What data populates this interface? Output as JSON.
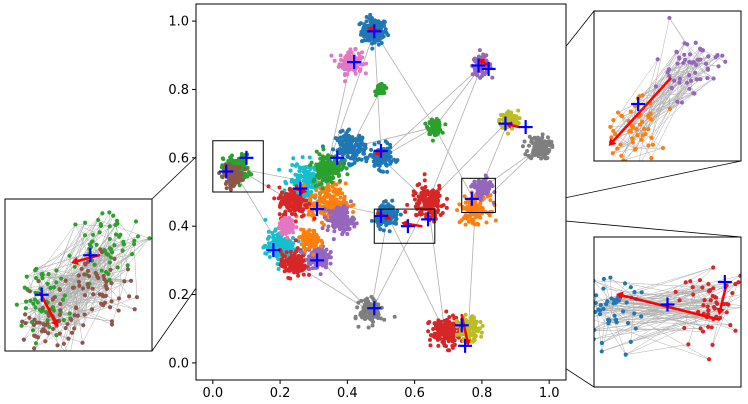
{
  "chart_data": {
    "type": "scatter",
    "title": "",
    "xlabel": "",
    "ylabel": "",
    "xlim": [
      -0.05,
      1.05
    ],
    "ylim": [
      -0.05,
      1.05
    ],
    "x_ticks": [
      "0.0",
      "0.2",
      "0.4",
      "0.6",
      "0.8",
      "1.0"
    ],
    "y_ticks": [
      "0.0",
      "0.2",
      "0.4",
      "0.6",
      "0.8",
      "1.0"
    ],
    "grid": false,
    "legend": "none",
    "series_colors": [
      "#1f77b4",
      "#ff7f0e",
      "#2ca02c",
      "#d62728",
      "#9467bd",
      "#8c564b",
      "#e377c2",
      "#7f7f7f",
      "#bcbd22",
      "#17becf"
    ],
    "marker_color": "#0000ff",
    "arrow_color": "#ff0000",
    "edge_color": "#b0b0b0",
    "clusters": [
      {
        "x": 0.48,
        "y": 0.97,
        "r": 0.035,
        "color": "#1f77b4"
      },
      {
        "x": 0.41,
        "y": 0.88,
        "r": 0.03,
        "color": "#e377c2"
      },
      {
        "x": 0.8,
        "y": 0.87,
        "r": 0.025,
        "color": "#9467bd"
      },
      {
        "x": 0.5,
        "y": 0.8,
        "r": 0.012,
        "color": "#2ca02c"
      },
      {
        "x": 0.66,
        "y": 0.69,
        "r": 0.018,
        "color": "#2ca02c"
      },
      {
        "x": 0.88,
        "y": 0.71,
        "r": 0.025,
        "color": "#bcbd22"
      },
      {
        "x": 0.97,
        "y": 0.63,
        "r": 0.03,
        "color": "#7f7f7f"
      },
      {
        "x": 0.07,
        "y": 0.57,
        "r": 0.035,
        "color": "#2ca02c"
      },
      {
        "x": 0.06,
        "y": 0.55,
        "r": 0.025,
        "color": "#8c564b"
      },
      {
        "x": 0.41,
        "y": 0.63,
        "r": 0.04,
        "color": "#1f77b4"
      },
      {
        "x": 0.5,
        "y": 0.6,
        "r": 0.03,
        "color": "#1f77b4"
      },
      {
        "x": 0.28,
        "y": 0.53,
        "r": 0.05,
        "color": "#17becf"
      },
      {
        "x": 0.34,
        "y": 0.47,
        "r": 0.05,
        "color": "#ff7f0e"
      },
      {
        "x": 0.24,
        "y": 0.47,
        "r": 0.04,
        "color": "#d62728"
      },
      {
        "x": 0.34,
        "y": 0.57,
        "r": 0.04,
        "color": "#2ca02c"
      },
      {
        "x": 0.38,
        "y": 0.42,
        "r": 0.035,
        "color": "#9467bd"
      },
      {
        "x": 0.2,
        "y": 0.34,
        "r": 0.04,
        "color": "#17becf"
      },
      {
        "x": 0.24,
        "y": 0.29,
        "r": 0.035,
        "color": "#d62728"
      },
      {
        "x": 0.22,
        "y": 0.4,
        "r": 0.02,
        "color": "#e377c2"
      },
      {
        "x": 0.31,
        "y": 0.31,
        "r": 0.03,
        "color": "#9467bd"
      },
      {
        "x": 0.29,
        "y": 0.36,
        "r": 0.025,
        "color": "#ff7f0e"
      },
      {
        "x": 0.52,
        "y": 0.43,
        "r": 0.03,
        "color": "#1f77b4"
      },
      {
        "x": 0.64,
        "y": 0.47,
        "r": 0.045,
        "color": "#d62728"
      },
      {
        "x": 0.78,
        "y": 0.45,
        "r": 0.035,
        "color": "#ff7f0e"
      },
      {
        "x": 0.8,
        "y": 0.51,
        "r": 0.025,
        "color": "#9467bd"
      },
      {
        "x": 0.47,
        "y": 0.15,
        "r": 0.03,
        "color": "#7f7f7f"
      },
      {
        "x": 0.69,
        "y": 0.09,
        "r": 0.04,
        "color": "#d62728"
      },
      {
        "x": 0.76,
        "y": 0.1,
        "r": 0.03,
        "color": "#bcbd22"
      }
    ],
    "center_markers": [
      {
        "x": 0.48,
        "y": 0.97
      },
      {
        "x": 0.42,
        "y": 0.88
      },
      {
        "x": 0.79,
        "y": 0.87
      },
      {
        "x": 0.82,
        "y": 0.86
      },
      {
        "x": 0.87,
        "y": 0.7
      },
      {
        "x": 0.93,
        "y": 0.69
      },
      {
        "x": 0.5,
        "y": 0.62
      },
      {
        "x": 0.37,
        "y": 0.6
      },
      {
        "x": 0.04,
        "y": 0.56
      },
      {
        "x": 0.1,
        "y": 0.6
      },
      {
        "x": 0.26,
        "y": 0.51
      },
      {
        "x": 0.31,
        "y": 0.45
      },
      {
        "x": 0.5,
        "y": 0.43
      },
      {
        "x": 0.58,
        "y": 0.4
      },
      {
        "x": 0.64,
        "y": 0.42
      },
      {
        "x": 0.77,
        "y": 0.48
      },
      {
        "x": 0.18,
        "y": 0.33
      },
      {
        "x": 0.31,
        "y": 0.3
      },
      {
        "x": 0.48,
        "y": 0.16
      },
      {
        "x": 0.74,
        "y": 0.11
      },
      {
        "x": 0.75,
        "y": 0.05
      }
    ],
    "arrows": [
      {
        "from": [
          0.5,
          0.97
        ],
        "to": [
          0.46,
          0.98
        ]
      },
      {
        "from": [
          0.82,
          0.87
        ],
        "to": [
          0.79,
          0.89
        ]
      },
      {
        "from": [
          0.91,
          0.69
        ],
        "to": [
          0.87,
          0.7
        ]
      },
      {
        "from": [
          0.51,
          0.62
        ],
        "to": [
          0.48,
          0.61
        ]
      },
      {
        "from": [
          0.62,
          0.4
        ],
        "to": [
          0.56,
          0.41
        ]
      },
      {
        "from": [
          0.49,
          0.44
        ],
        "to": [
          0.53,
          0.42
        ]
      },
      {
        "from": [
          0.24,
          0.51
        ],
        "to": [
          0.28,
          0.5
        ]
      },
      {
        "from": [
          0.74,
          0.14
        ],
        "to": [
          0.76,
          0.05
        ]
      }
    ],
    "edges": [
      [
        0.48,
        0.97,
        0.5,
        0.62
      ],
      [
        0.48,
        0.97,
        0.66,
        0.69
      ],
      [
        0.41,
        0.88,
        0.34,
        0.57
      ],
      [
        0.8,
        0.87,
        0.66,
        0.69
      ],
      [
        0.8,
        0.87,
        0.64,
        0.47
      ],
      [
        0.88,
        0.71,
        0.78,
        0.47
      ],
      [
        0.97,
        0.63,
        0.8,
        0.51
      ],
      [
        0.66,
        0.69,
        0.5,
        0.6
      ],
      [
        0.66,
        0.69,
        0.78,
        0.47
      ],
      [
        0.5,
        0.8,
        0.41,
        0.63
      ],
      [
        0.5,
        0.6,
        0.64,
        0.47
      ],
      [
        0.07,
        0.57,
        0.24,
        0.47
      ],
      [
        0.07,
        0.57,
        0.28,
        0.53
      ],
      [
        0.52,
        0.43,
        0.47,
        0.15
      ],
      [
        0.64,
        0.47,
        0.69,
        0.09
      ],
      [
        0.78,
        0.45,
        0.76,
        0.1
      ],
      [
        0.52,
        0.43,
        0.69,
        0.09
      ],
      [
        0.34,
        0.47,
        0.52,
        0.43
      ],
      [
        0.31,
        0.31,
        0.47,
        0.15
      ],
      [
        0.64,
        0.47,
        0.88,
        0.71
      ],
      [
        0.41,
        0.63,
        0.66,
        0.69
      ],
      [
        0.2,
        0.34,
        0.07,
        0.55
      ],
      [
        0.78,
        0.45,
        0.97,
        0.63
      ],
      [
        0.5,
        0.6,
        0.8,
        0.87
      ],
      [
        0.34,
        0.57,
        0.48,
        0.97
      ],
      [
        0.64,
        0.47,
        0.47,
        0.15
      ],
      [
        0.24,
        0.29,
        0.47,
        0.15
      ]
    ],
    "insets": [
      {
        "name": "left-inset",
        "region": {
          "x0": 0.0,
          "y0": 0.5,
          "x1": 0.15,
          "y1": 0.65
        },
        "clusters": [
          {
            "x": 0.72,
            "y": 0.7,
            "color": "#2ca02c"
          },
          {
            "x": 0.28,
            "y": 0.35,
            "color": "#2ca02c"
          },
          {
            "x": 0.65,
            "y": 0.45,
            "color": "#8c564b"
          },
          {
            "x": 0.32,
            "y": 0.2,
            "color": "#8c564b"
          }
        ],
        "markers": [
          {
            "x": 0.58,
            "y": 0.63
          },
          {
            "x": 0.25,
            "y": 0.37
          }
        ],
        "arrows": [
          {
            "from": [
              0.64,
              0.63
            ],
            "to": [
              0.45,
              0.58
            ]
          },
          {
            "from": [
              0.24,
              0.38
            ],
            "to": [
              0.36,
              0.16
            ]
          }
        ]
      },
      {
        "name": "top-right-inset",
        "region": {
          "x0": 0.74,
          "y0": 0.44,
          "x1": 0.84,
          "y1": 0.54
        },
        "clusters": [
          {
            "x": 0.65,
            "y": 0.62,
            "color": "#9467bd"
          },
          {
            "x": 0.25,
            "y": 0.2,
            "color": "#ff7f0e"
          }
        ],
        "markers": [
          {
            "x": 0.3,
            "y": 0.38
          }
        ],
        "arrows": [
          {
            "from": [
              0.52,
              0.55
            ],
            "to": [
              0.1,
              0.1
            ]
          }
        ]
      },
      {
        "name": "bottom-right-inset",
        "region": {
          "x0": 0.48,
          "y0": 0.35,
          "x1": 0.66,
          "y1": 0.45
        },
        "clusters": [
          {
            "x": 0.1,
            "y": 0.5,
            "color": "#1f77b4"
          },
          {
            "x": 0.82,
            "y": 0.55,
            "color": "#d62728"
          }
        ],
        "markers": [
          {
            "x": 0.5,
            "y": 0.55
          },
          {
            "x": 0.89,
            "y": 0.7
          }
        ],
        "arrows": [
          {
            "from": [
              0.85,
              0.45
            ],
            "to": [
              0.15,
              0.62
            ]
          },
          {
            "from": [
              0.9,
              0.68
            ],
            "to": [
              0.85,
              0.48
            ]
          }
        ]
      }
    ]
  }
}
